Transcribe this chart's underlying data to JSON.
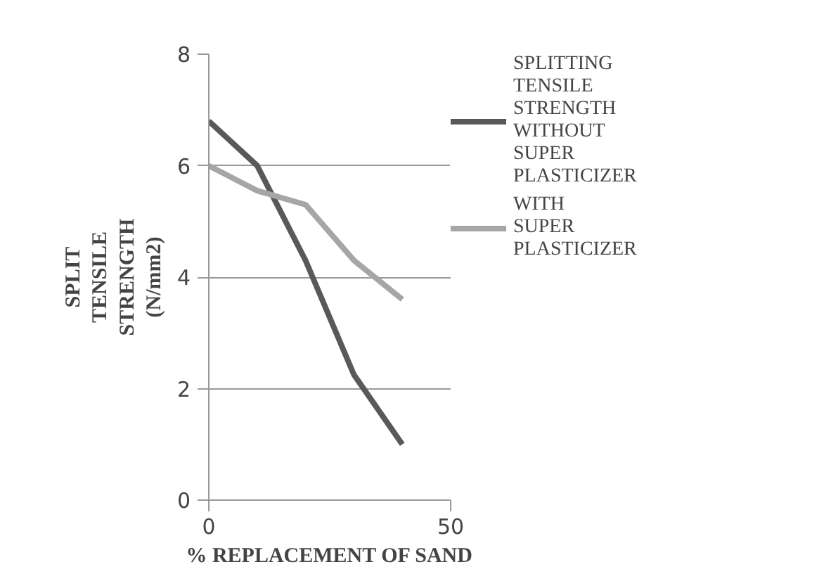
{
  "chart_data": {
    "type": "line",
    "xlabel": "% REPLACEMENT OF SAND",
    "ylabel": "SPLIT TENSILE STRENGTH (N/mm2)",
    "x": [
      0,
      10,
      20,
      30,
      40
    ],
    "series": [
      {
        "name": "SPLITTING TENSILE STRENGTH WITHOUT SUPER PLASTICIZER",
        "color": "#595959",
        "values": [
          6.8,
          6.0,
          4.3,
          2.25,
          1.0
        ]
      },
      {
        "name": "WITH SUPER PLASTICIZER",
        "color": "#a6a6a6",
        "values": [
          6.0,
          5.55,
          5.3,
          4.3,
          3.6
        ]
      }
    ],
    "xlim": [
      0,
      50
    ],
    "xticks": [
      0,
      50
    ],
    "ylim": [
      0,
      8
    ],
    "yticks": [
      0,
      2,
      4,
      6,
      8
    ],
    "grid": "y",
    "legend": "right",
    "marker": "none",
    "line_style": "solid"
  }
}
